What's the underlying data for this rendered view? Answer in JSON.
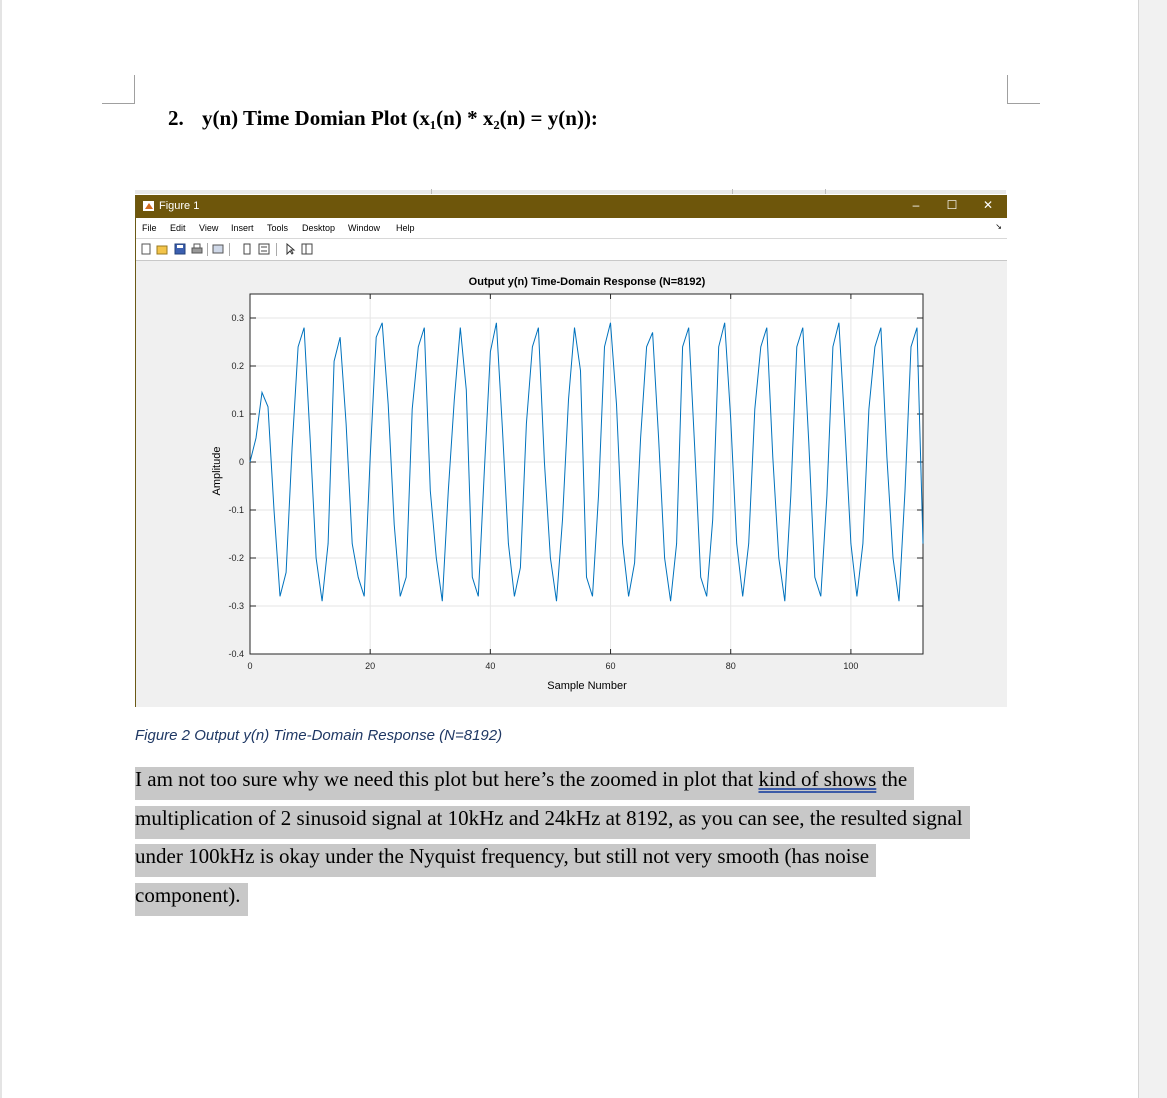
{
  "heading": {
    "number": "2.",
    "text": "y(n) Time Domian Plot (x₁(n) * x₂(n) = y(n)):"
  },
  "figure_window": {
    "title": "Figure 1",
    "menu": [
      "File",
      "Edit",
      "View",
      "Insert",
      "Tools",
      "Desktop",
      "Window",
      "Help"
    ],
    "controls": {
      "minimize": "–",
      "maximize": "☐",
      "close": "✕"
    },
    "toolbar_icons": [
      "new-file-icon",
      "open-folder-icon",
      "save-icon",
      "print-icon",
      "export-icon",
      "colorbar-icon",
      "legend-icon",
      "pointer-icon",
      "property-editor-icon"
    ],
    "accent_color": "#6e560b"
  },
  "chart_data": {
    "type": "line",
    "title": "Output y(n) Time-Domain Response (N=8192)",
    "xlabel": "Sample Number",
    "ylabel": "Amplitude",
    "xlim": [
      0,
      112
    ],
    "ylim": [
      -0.4,
      0.35
    ],
    "xticks": [
      "0",
      "20",
      "40",
      "60",
      "80",
      "100"
    ],
    "yticks": [
      "-0.4",
      "-0.3",
      "-0.2",
      "-0.1",
      "0",
      "0.1",
      "0.2",
      "0.3"
    ],
    "grid": true,
    "line_color": "#0072bd",
    "series": [
      {
        "name": "",
        "x": [
          0,
          1,
          2,
          3,
          4,
          5,
          6,
          7,
          8,
          9,
          10,
          11,
          12,
          13,
          14,
          15,
          16,
          17,
          18,
          19,
          20,
          21,
          22,
          23,
          24,
          25,
          26,
          27,
          28,
          29,
          30,
          31,
          32,
          33,
          34,
          35,
          36,
          37,
          38,
          39,
          40,
          41,
          42,
          43,
          44,
          45,
          46,
          47,
          48,
          49,
          50,
          51,
          52,
          53,
          54,
          55,
          56,
          57,
          58,
          59,
          60,
          61,
          62,
          63,
          64,
          65,
          66,
          67,
          68,
          69,
          70,
          71,
          72,
          73,
          74,
          75,
          76,
          77,
          78,
          79,
          80,
          81,
          82,
          83,
          84,
          85,
          86,
          87,
          88,
          89,
          90,
          91,
          92,
          93,
          94,
          95,
          96,
          97,
          98,
          99,
          100,
          101,
          102,
          103,
          104,
          105,
          106,
          107,
          108,
          109,
          110,
          111,
          112
        ],
        "values": [
          0.0,
          0.05,
          0.145,
          0.115,
          -0.1,
          -0.28,
          -0.23,
          0.03,
          0.24,
          0.28,
          0.05,
          -0.2,
          -0.29,
          -0.17,
          0.21,
          0.26,
          0.08,
          -0.17,
          -0.24,
          -0.28,
          0.01,
          0.26,
          0.29,
          0.12,
          -0.13,
          -0.28,
          -0.24,
          0.11,
          0.24,
          0.28,
          -0.06,
          -0.2,
          -0.29,
          -0.06,
          0.13,
          0.28,
          0.15,
          -0.24,
          -0.28,
          -0.02,
          0.23,
          0.29,
          0.07,
          -0.17,
          -0.28,
          -0.22,
          0.08,
          0.24,
          0.28,
          0.0,
          -0.2,
          -0.29,
          -0.12,
          0.13,
          0.28,
          0.19,
          -0.24,
          -0.28,
          -0.07,
          0.24,
          0.29,
          0.12,
          -0.17,
          -0.28,
          -0.21,
          0.05,
          0.24,
          0.27,
          0.05,
          -0.2,
          -0.29,
          -0.17,
          0.24,
          0.28,
          0.03,
          -0.24,
          -0.28,
          -0.12,
          0.24,
          0.29,
          0.09,
          -0.17,
          -0.28,
          -0.17,
          0.11,
          0.24,
          0.28,
          0.01,
          -0.2,
          -0.29,
          -0.07,
          0.24,
          0.28,
          0.04,
          -0.24,
          -0.28,
          -0.07,
          0.24,
          0.29,
          0.07,
          -0.17,
          -0.28,
          -0.17,
          0.11,
          0.24,
          0.28,
          0.01,
          -0.2,
          -0.29,
          -0.06,
          0.24,
          0.28,
          -0.17
        ]
      }
    ]
  },
  "caption": "Figure 2 Output y(n) Time-Domain Response (N=8192)",
  "body": {
    "part1": "I am not too sure why we need this plot but here’s the zoomed in plot that ",
    "underlined": "kind of shows",
    "part2": " the multiplication of 2 sinusoid signal at 10kHz and 24kHz at 8192, as you can see, the resulted signal under 100kHz is okay under the Nyquist frequency, but still not very smooth (has noise component).",
    "highlight_color": "#c8c8c8"
  }
}
